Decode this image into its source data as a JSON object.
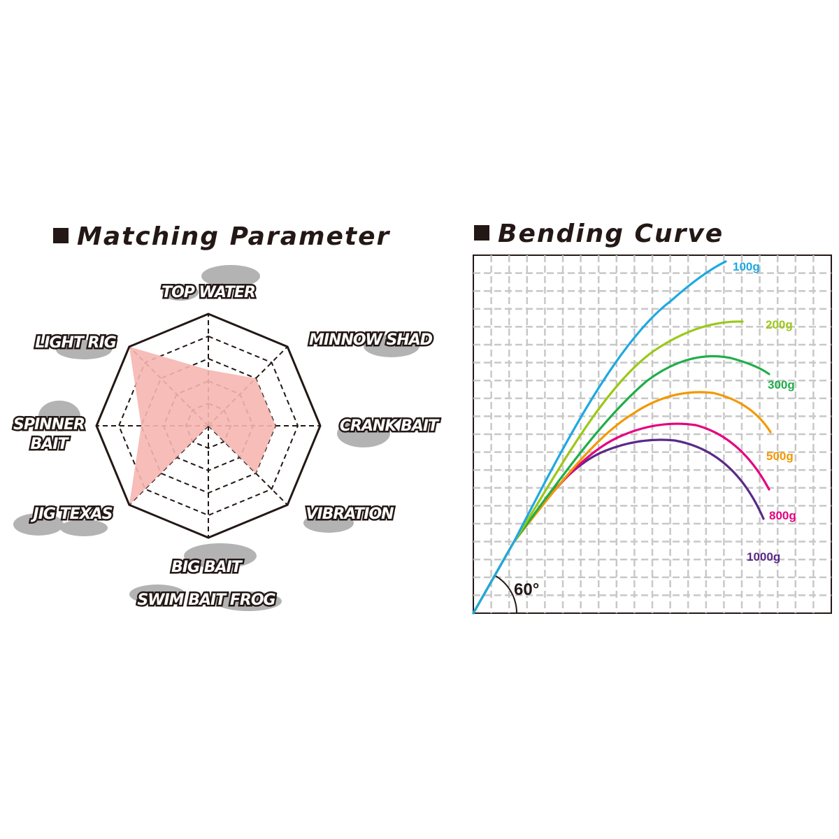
{
  "chart_data": [
    {
      "type": "radar",
      "title": "Matching Parameter",
      "axes": [
        "TOP WATER",
        "MINNOW SHAD",
        "CRANK BAIT",
        "VIBRATION",
        "BIG BAIT SWIM BAIT FROG",
        "JIG TEXAS",
        "SPINNER BAIT",
        "LIGHT RIG"
      ],
      "label_lines": [
        [
          "TOP WATER"
        ],
        [
          "MINNOW SHAD"
        ],
        [
          "CRANK BAIT"
        ],
        [
          "VIBRATION"
        ],
        [
          "BIG BAIT",
          "SWIM BAIT  FROG"
        ],
        [
          "JIG  TEXAS"
        ],
        [
          "SPINNER",
          "BAIT"
        ],
        [
          "LIGHT RIG"
        ]
      ],
      "scale_max": 5,
      "values": [
        2.5,
        3.0,
        3.0,
        3.0,
        0,
        5.0,
        3.0,
        5.0
      ],
      "fill_color": "#f6b6b1",
      "grid": "dashed"
    },
    {
      "type": "line",
      "title": "Bending Curve",
      "angle_label": "60°",
      "grid": true,
      "series": [
        {
          "name": "100g",
          "color": "#1ea9e1"
        },
        {
          "name": "200g",
          "color": "#9cc817"
        },
        {
          "name": "300g",
          "color": "#1fae4a"
        },
        {
          "name": "500g",
          "color": "#f39800"
        },
        {
          "name": "800g",
          "color": "#e5007f"
        },
        {
          "name": "1000g",
          "color": "#5a2a88"
        }
      ]
    }
  ]
}
